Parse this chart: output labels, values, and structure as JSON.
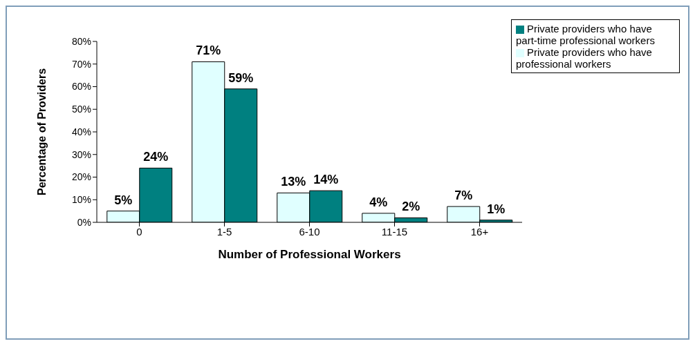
{
  "chart_data": {
    "type": "bar",
    "xlabel": "Number of Professional Workers",
    "ylabel": "Percentage of Providers",
    "categories": [
      "0",
      "1-5",
      "6-10",
      "11-15",
      "16+"
    ],
    "series": [
      {
        "name": "Private providers who have professional workers",
        "color": "#e0ffff",
        "values": [
          5,
          71,
          13,
          4,
          7
        ],
        "value_labels": [
          "5%",
          "71%",
          "13%",
          "4%",
          "7%"
        ]
      },
      {
        "name": "Private providers who have part-time professional workers",
        "color": "#008080",
        "values": [
          24,
          59,
          14,
          2,
          1
        ],
        "value_labels": [
          "24%",
          "59%",
          "14%",
          "2%",
          "1%"
        ]
      }
    ],
    "ylim": [
      0,
      80
    ],
    "yticks": [
      {
        "value": 0,
        "label": "0%"
      },
      {
        "value": 10,
        "label": "10%"
      },
      {
        "value": 20,
        "label": "20%"
      },
      {
        "value": 30,
        "label": "30%"
      },
      {
        "value": 40,
        "label": "40%"
      },
      {
        "value": 50,
        "label": "50%"
      },
      {
        "value": 60,
        "label": "60%"
      },
      {
        "value": 70,
        "label": "70%"
      },
      {
        "value": 80,
        "label": "80%"
      }
    ],
    "grid": false,
    "legend": "top right"
  }
}
